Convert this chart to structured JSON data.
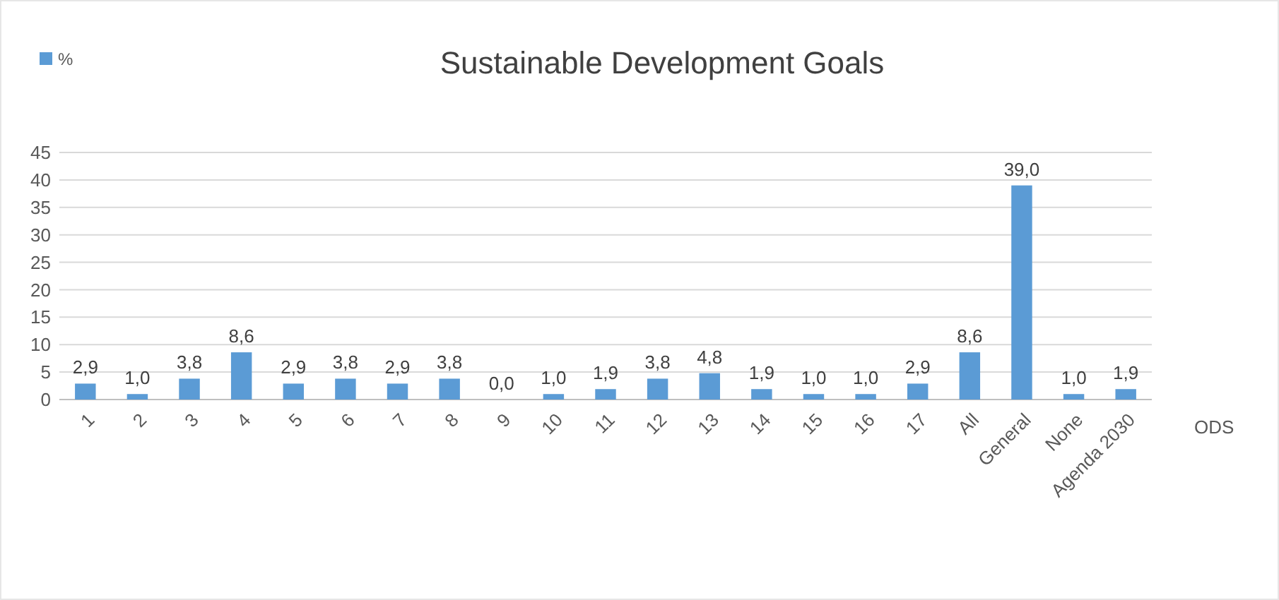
{
  "chart_data": {
    "type": "bar",
    "title": "Sustainable Development Goals",
    "xlabel": "ODS",
    "categories": [
      "1",
      "2",
      "3",
      "4",
      "5",
      "6",
      "7",
      "8",
      "9",
      "10",
      "11",
      "12",
      "13",
      "14",
      "15",
      "16",
      "17",
      "All",
      "General",
      "None",
      "Agenda 2030"
    ],
    "series": [
      {
        "name": "%",
        "color": "#5b9bd5",
        "values": [
          2.9,
          1.0,
          3.8,
          8.6,
          2.9,
          3.8,
          2.9,
          3.8,
          0.0,
          1.0,
          1.9,
          3.8,
          4.8,
          1.9,
          1.0,
          1.0,
          2.9,
          8.6,
          39.0,
          1.0,
          1.9
        ],
        "value_labels": [
          "2,9",
          "1,0",
          "3,8",
          "8,6",
          "2,9",
          "3,8",
          "2,9",
          "3,8",
          "0,0",
          "1,0",
          "1,9",
          "3,8",
          "4,8",
          "1,9",
          "1,0",
          "1,0",
          "2,9",
          "8,6",
          "39,0",
          "1,0",
          "1,9"
        ]
      }
    ],
    "ylim": [
      0,
      45
    ],
    "yticks": [
      0,
      5,
      10,
      15,
      20,
      25,
      30,
      35,
      40,
      45
    ],
    "grid": "y",
    "legend": "top left"
  }
}
